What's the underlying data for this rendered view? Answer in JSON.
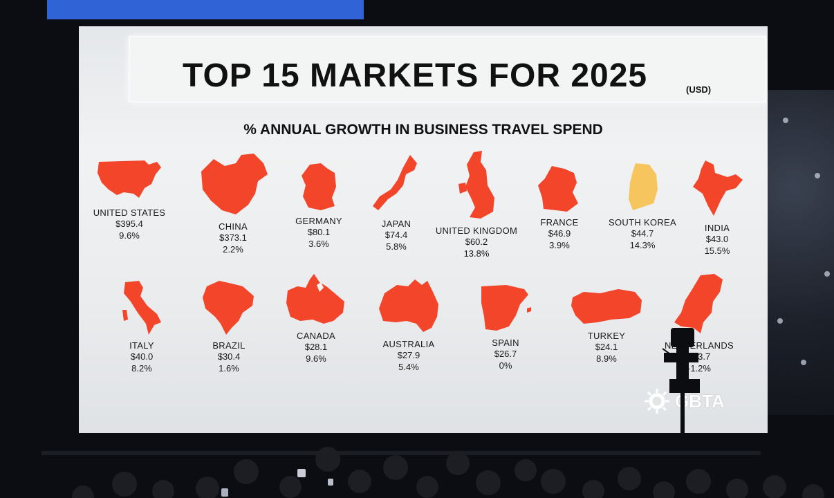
{
  "slide": {
    "title": "TOP 15 MARKETS FOR 2025",
    "currency_note": "(USD)",
    "subtitle": "% ANNUAL GROWTH IN BUSINESS TRAVEL SPEND",
    "logo_text": "GBTA"
  },
  "colors": {
    "map_fill": "#f2452a",
    "highlight_fill": "#f7c55e",
    "text": "#1a1a1a"
  },
  "markets": [
    {
      "name": "UNITED STATES",
      "spend": "$395.4",
      "growth": "9.6%"
    },
    {
      "name": "CHINA",
      "spend": "$373.1",
      "growth": "2.2%"
    },
    {
      "name": "GERMANY",
      "spend": "$80.1",
      "growth": "3.6%"
    },
    {
      "name": "JAPAN",
      "spend": "$74.4",
      "growth": "5.8%"
    },
    {
      "name": "UNITED KINGDOM",
      "spend": "$60.2",
      "growth": "13.8%"
    },
    {
      "name": "FRANCE",
      "spend": "$46.9",
      "growth": "3.9%"
    },
    {
      "name": "SOUTH KOREA",
      "spend": "$44.7",
      "growth": "14.3%"
    },
    {
      "name": "INDIA",
      "spend": "$43.0",
      "growth": "15.5%"
    },
    {
      "name": "ITALY",
      "spend": "$40.0",
      "growth": "8.2%"
    },
    {
      "name": "BRAZIL",
      "spend": "$30.4",
      "growth": "1.6%"
    },
    {
      "name": "CANADA",
      "spend": "$28.1",
      "growth": "9.6%"
    },
    {
      "name": "AUSTRALIA",
      "spend": "$27.9",
      "growth": "5.4%"
    },
    {
      "name": "SPAIN",
      "spend": "$26.7",
      "growth": "0%"
    },
    {
      "name": "TURKEY",
      "spend": "$24.1",
      "growth": "8.9%"
    },
    {
      "name": "NETHERLANDS",
      "spend": "$23.7",
      "growth": "-1.2%"
    }
  ]
}
